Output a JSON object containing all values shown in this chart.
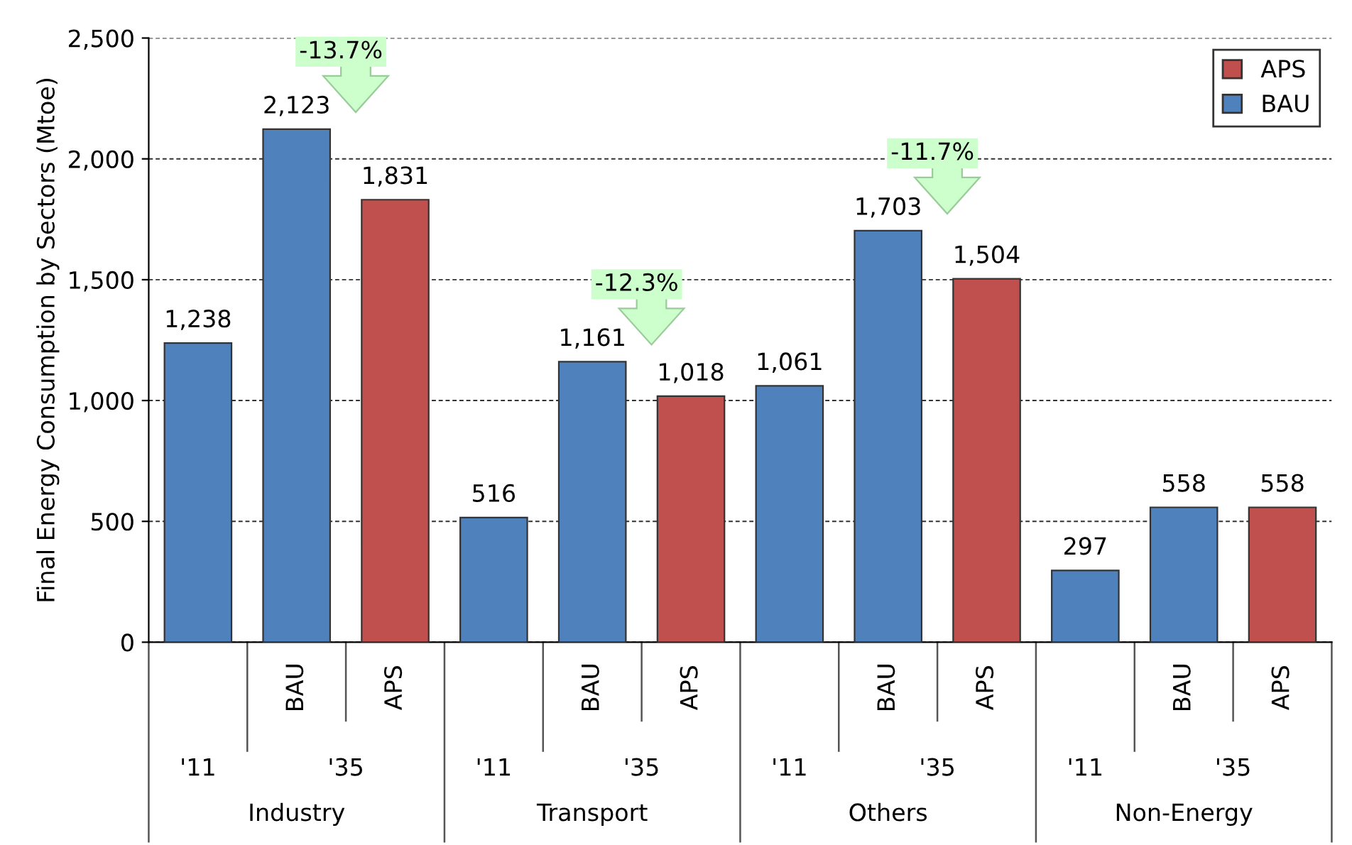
{
  "chart_data": {
    "type": "bar",
    "ylabel": "Final Energy Consumption by Sectors (Mtoe)",
    "categories": [
      null,
      "BAU",
      "APS",
      null,
      "BAU",
      "APS",
      null,
      "BAU",
      "APS",
      null,
      "BAU",
      "APS"
    ],
    "series": [
      {
        "name": "APS",
        "color": "#c0504d",
        "values": [
          null,
          null,
          1831,
          null,
          null,
          1018,
          null,
          null,
          1504,
          null,
          null,
          558
        ],
        "value_labels": [
          null,
          null,
          "1,831",
          null,
          null,
          "1,018",
          null,
          null,
          "1,504",
          null,
          null,
          "558"
        ]
      },
      {
        "name": "BAU",
        "color": "#4f81bd",
        "values": [
          1238,
          2123,
          null,
          516,
          1161,
          null,
          1061,
          1703,
          null,
          297,
          558,
          null
        ],
        "value_labels": [
          "1,238",
          "2,123",
          null,
          "516",
          "1,161",
          null,
          "1,061",
          "1,703",
          null,
          "297",
          "558",
          null
        ]
      }
    ],
    "ylim": [
      0,
      2500
    ],
    "yticks": [
      0,
      500,
      {
        "value": 1000,
        "label": "1,000"
      },
      {
        "value": 1500,
        "label": "1,500"
      },
      {
        "value": 2000,
        "label": "2,000"
      },
      {
        "value": 2500,
        "label": "2,500"
      }
    ],
    "grid": "y",
    "legend": "top right",
    "annotations": [
      "'11",
      "'35",
      "Industry",
      "'11",
      "'35",
      "Transport",
      "'11",
      "'35",
      "Others",
      "'11",
      "'35",
      "Non-Energy",
      "-13.7%",
      "-12.3%",
      "-11.7%"
    ]
  }
}
